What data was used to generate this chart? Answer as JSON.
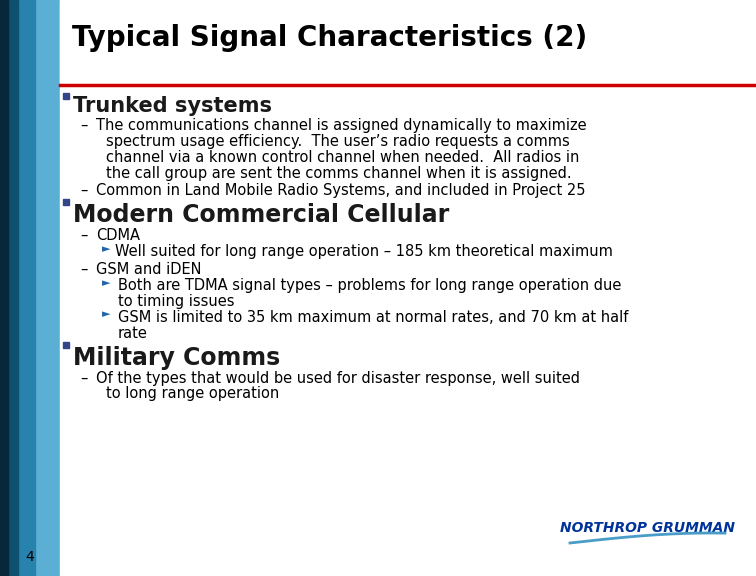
{
  "title": "Typical Signal Characteristics (2)",
  "title_color": "#000000",
  "title_fontsize": 20,
  "red_line_color": "#cc0000",
  "background_color": "#ffffff",
  "slide_number": "4",
  "left_bar_colors": [
    "#0a3d5c",
    "#1a6f9e",
    "#5aabcf",
    "#7bbfd8"
  ],
  "content_text_color": "#000000",
  "bullet1_text": "Trunked systems",
  "bullet1_color": "#1a1a1a",
  "bullet1_fontsize": 15,
  "bullet2_text": "Modern Commercial Cellular",
  "bullet2_color": "#1a1a1a",
  "bullet2_fontsize": 17,
  "bullet3_text": "Military Comms",
  "bullet3_color": "#1a1a1a",
  "bullet3_fontsize": 17,
  "body_fontsize": 10.5,
  "ng_color": "#003399",
  "ng_fontsize": 10,
  "ng_text": "NORTHROP GRUMMAN",
  "swoosh_color": "#4a9cc8"
}
